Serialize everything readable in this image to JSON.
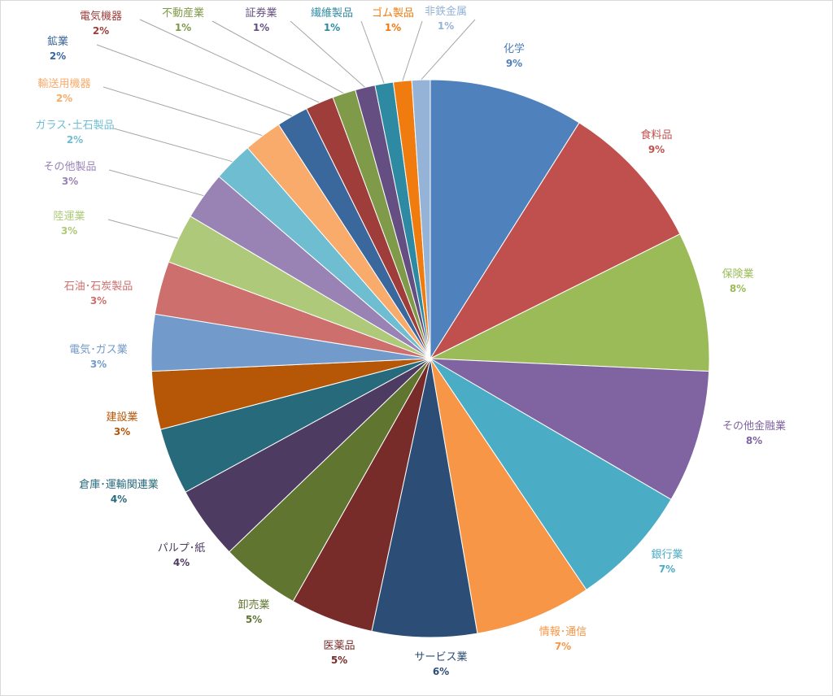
{
  "chart_data": {
    "type": "pie",
    "title": "",
    "start_angle_deg": 0,
    "direction": "clockwise",
    "slices": [
      {
        "label": "化学",
        "percent_label": "9%",
        "value": 9.3,
        "color": "#4f81bd"
      },
      {
        "label": "食料品",
        "percent_label": "9%",
        "value": 9.0,
        "color": "#c0504d"
      },
      {
        "label": "保険業",
        "percent_label": "8%",
        "value": 8.4,
        "color": "#9bbb59"
      },
      {
        "label": "その他金融業",
        "percent_label": "8%",
        "value": 8.0,
        "color": "#8064a2"
      },
      {
        "label": "銀行業",
        "percent_label": "7%",
        "value": 7.4,
        "color": "#4bacc6"
      },
      {
        "label": "情報･通信",
        "percent_label": "7%",
        "value": 7.0,
        "color": "#f79646"
      },
      {
        "label": "サービス業",
        "percent_label": "6%",
        "value": 6.3,
        "color": "#2c4d75"
      },
      {
        "label": "医薬品",
        "percent_label": "5%",
        "value": 5.0,
        "color": "#772c2a"
      },
      {
        "label": "卸売業",
        "percent_label": "5%",
        "value": 4.8,
        "color": "#5f7530"
      },
      {
        "label": "パルプ･紙",
        "percent_label": "4%",
        "value": 4.4,
        "color": "#4d3b62"
      },
      {
        "label": "倉庫･運輸関連業",
        "percent_label": "4%",
        "value": 4.0,
        "color": "#276a7c"
      },
      {
        "label": "建設業",
        "percent_label": "3%",
        "value": 3.5,
        "color": "#b65708"
      },
      {
        "label": "電気･ガス業",
        "percent_label": "3%",
        "value": 3.4,
        "color": "#729aca"
      },
      {
        "label": "石油･石炭製品",
        "percent_label": "3%",
        "value": 3.2,
        "color": "#cd6f6d"
      },
      {
        "label": "陸運業",
        "percent_label": "3%",
        "value": 3.0,
        "color": "#afc97a"
      },
      {
        "label": "その他製品",
        "percent_label": "3%",
        "value": 2.9,
        "color": "#9983b5"
      },
      {
        "label": "ガラス･土石製品",
        "percent_label": "2%",
        "value": 2.4,
        "color": "#6fbdd1"
      },
      {
        "label": "輸送用機器",
        "percent_label": "2%",
        "value": 2.3,
        "color": "#f9ab6b"
      },
      {
        "label": "鉱業",
        "percent_label": "2%",
        "value": 1.9,
        "color": "#3a679c"
      },
      {
        "label": "電気機器",
        "percent_label": "2%",
        "value": 1.7,
        "color": "#9e3d3a"
      },
      {
        "label": "不動産業",
        "percent_label": "1%",
        "value": 1.4,
        "color": "#7f9a48"
      },
      {
        "label": "証券業",
        "percent_label": "1%",
        "value": 1.2,
        "color": "#654f82"
      },
      {
        "label": "繊維製品",
        "percent_label": "1%",
        "value": 1.1,
        "color": "#2e8aa2"
      },
      {
        "label": "ゴム製品",
        "percent_label": "1%",
        "value": 1.1,
        "color": "#f07b0f"
      },
      {
        "label": "非鉄金属",
        "percent_label": "1%",
        "value": 1.1,
        "color": "#95b3d7"
      }
    ]
  }
}
